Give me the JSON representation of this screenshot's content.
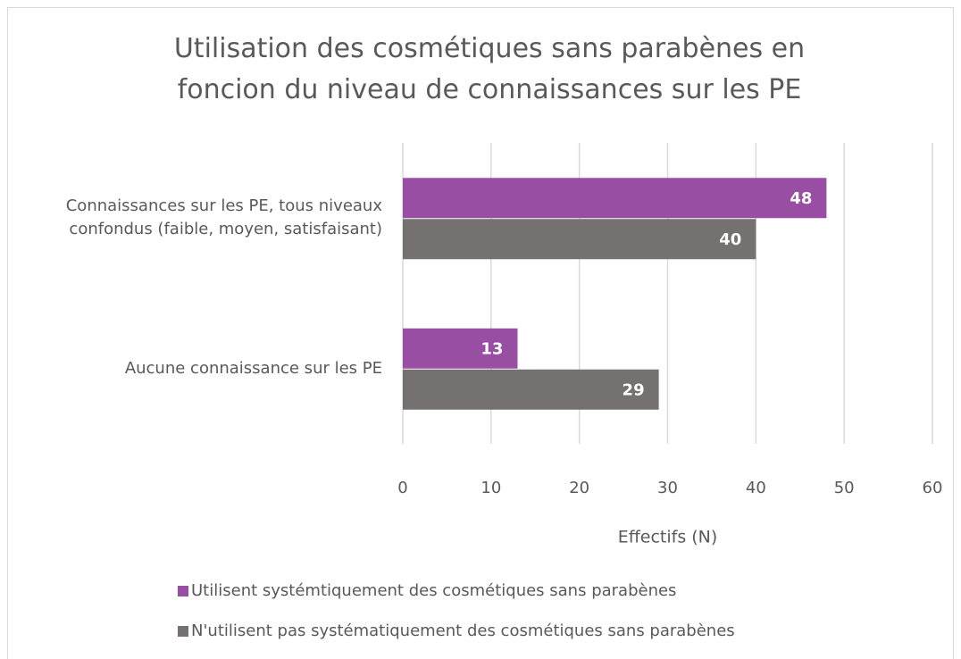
{
  "chart_data": {
    "type": "barh",
    "title": "Utilisation des cosmétiques sans parabènes en foncion du niveau de connaissances sur les PE",
    "categories": [
      "Connaissances sur les PE, tous niveaux confondus (faible, moyen, satisfaisant)",
      "Aucune connaissance sur les PE"
    ],
    "series": [
      {
        "name": "Utilisent systémtiquement des cosmétiques sans parabènes",
        "color": "#984ea3",
        "values": [
          48,
          13
        ]
      },
      {
        "name": "N'utilisent pas systématiquement des cosmétiques sans parabènes",
        "color": "#767171",
        "values": [
          40,
          29
        ]
      }
    ],
    "xlabel": "Effectifs (N)",
    "xlim": [
      0,
      60
    ],
    "xticks": [
      0,
      10,
      20,
      30,
      40,
      50,
      60
    ],
    "grid": true,
    "legend": "bottom"
  }
}
